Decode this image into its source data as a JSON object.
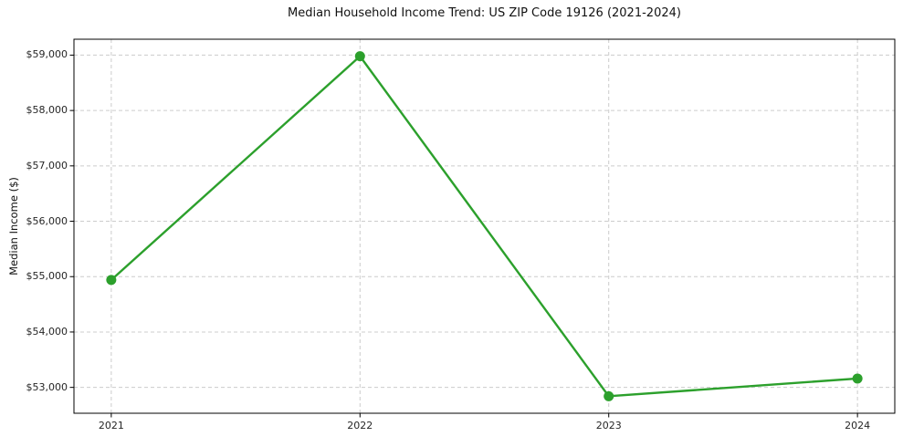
{
  "chart_data": {
    "type": "line",
    "title": "Median Household Income Trend: US ZIP Code 19126 (2021-2024)",
    "xlabel": "",
    "ylabel": "Median Income ($)",
    "x": [
      2021,
      2022,
      2023,
      2024
    ],
    "x_tick_labels": [
      "2021",
      "2022",
      "2023",
      "2024"
    ],
    "series": [
      {
        "name": "Median household income",
        "values": [
          54940,
          58980,
          52840,
          53160
        ],
        "color": "#2ca02c",
        "marker": "circle"
      }
    ],
    "yticks": [
      53000,
      54000,
      55000,
      56000,
      57000,
      58000,
      59000
    ],
    "ytick_labels": [
      "$53,000",
      "$54,000",
      "$55,000",
      "$56,000",
      "$57,000",
      "$58,000",
      "$59,000"
    ],
    "xlim": [
      2020.85,
      2024.15
    ],
    "ylim": [
      52533,
      59287
    ],
    "grid": {
      "visible": true,
      "style": "dashed",
      "color": "#cccccc"
    },
    "legend": {
      "visible": false
    }
  },
  "colors": {
    "line": "#2ca02c",
    "spine": "#000000",
    "tick_text": "#262626",
    "grid": "#cccccc",
    "background": "#ffffff"
  }
}
